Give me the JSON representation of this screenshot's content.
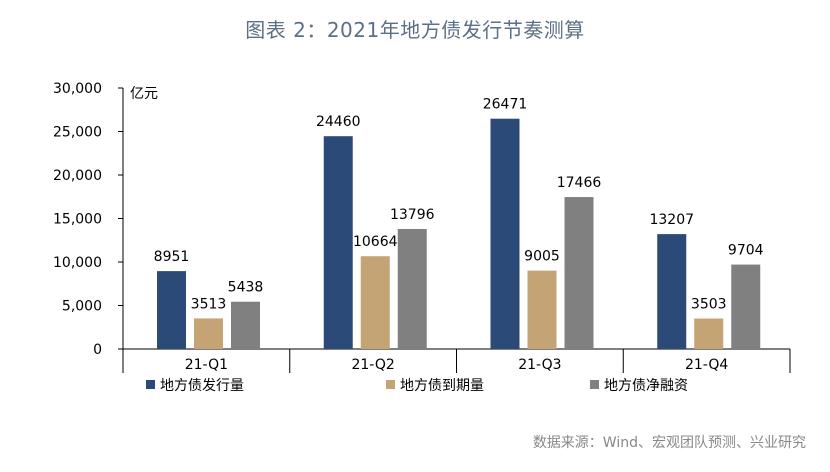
{
  "page": {
    "title": "图表 2：2021年地方债发行节奏测算",
    "source": "数据来源：Wind、宏观团队预测、兴业研究"
  },
  "colors": {
    "issue": "#2b4a78",
    "maturity": "#c4a474",
    "net": "#808080",
    "axis": "#000000",
    "title": "#5b6f86",
    "source": "#888888"
  },
  "chart_data": {
    "type": "bar",
    "title": "图表 2：2021年地方债发行节奏测算",
    "ylabel": "亿元",
    "xlabel": "",
    "categories": [
      "21-Q1",
      "21-Q2",
      "21-Q3",
      "21-Q4"
    ],
    "ylim": [
      0,
      30000
    ],
    "yticks": [
      0,
      5000,
      10000,
      15000,
      20000,
      25000,
      30000
    ],
    "ytick_labels": [
      "0",
      "5,000",
      "10,000",
      "15,000",
      "20,000",
      "25,000",
      "30,000"
    ],
    "grid": false,
    "legend_position": "bottom",
    "series": [
      {
        "name": "地方债发行量",
        "color": "#2b4a78",
        "values": [
          8951,
          24460,
          26471,
          13207
        ]
      },
      {
        "name": "地方债到期量",
        "color": "#c4a474",
        "values": [
          3513,
          10664,
          9005,
          3503
        ]
      },
      {
        "name": "地方债净融资",
        "color": "#808080",
        "values": [
          5438,
          13796,
          17466,
          9704
        ]
      }
    ]
  }
}
